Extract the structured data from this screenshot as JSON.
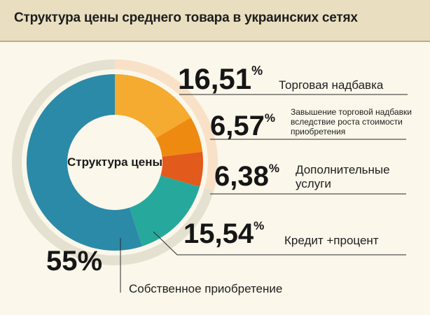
{
  "header": {
    "title": "Структура цены среднего товара в украинских сетях"
  },
  "chart_data": {
    "type": "pie",
    "title": "Структура цены среднего товара в украинских сетях",
    "center_label": "Структура цены",
    "slices": [
      {
        "name": "Торговая надбавка",
        "value": 16.51,
        "value_label": "16,51",
        "color": "#f5ab2f"
      },
      {
        "name": "Завышение торговой надбавки вследствие роста стоимости приобретения",
        "value": 6.57,
        "value_label": "6,57",
        "color": "#ee8a10"
      },
      {
        "name": "Дополнительные услуги",
        "value": 6.38,
        "value_label": "6,38",
        "color": "#e25a1c"
      },
      {
        "name": "Кредит +процент",
        "value": 15.54,
        "value_label": "15,54",
        "color": "#27a89c"
      },
      {
        "name": "Собственное приобретение",
        "value": 55,
        "value_label": "55",
        "color": "#2b8aa8"
      }
    ],
    "percent_sign": "%",
    "label_lines": {
      "s0": [
        "Торговая надбавка"
      ],
      "s1": [
        "Завышение торговой надбавки",
        "вследствие роста стоимости",
        "приобретения"
      ],
      "s2": [
        "Дополнительные",
        "услуги"
      ],
      "s3": [
        "Кредит +процент"
      ],
      "s4": [
        "Собственное приобретение"
      ]
    },
    "colors": {
      "outer_ring": "#e5e1d0",
      "outer_ring_orange": "#f9e1c7",
      "center": "#fbf7ea",
      "leader": "#2a2a2a"
    }
  }
}
